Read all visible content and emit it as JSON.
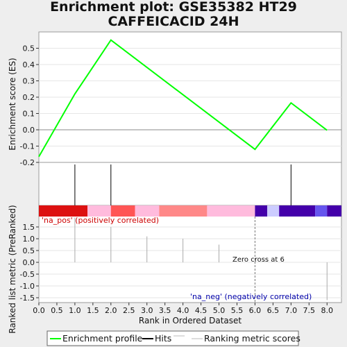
{
  "chart_data": {
    "type": "line",
    "title": "Enrichment plot: GSE35382 HT29 CAFFEICACID 24H",
    "es_panel": {
      "ylabel": "Enrichment score (ES)",
      "ylim": [
        -0.2,
        0.6
      ],
      "yticks": [
        "0.5",
        "0.4",
        "0.3",
        "0.2",
        "0.1",
        "0.0",
        "-0.1",
        "-0.2"
      ],
      "yticks_values": [
        0.5,
        0.4,
        0.3,
        0.2,
        0.1,
        0.0,
        -0.1,
        -0.2
      ],
      "series": [
        {
          "name": "Enrichment profile",
          "color": "#00ff00",
          "x": [
            0,
            1,
            2,
            6,
            7,
            8
          ],
          "y": [
            -0.165,
            0.22,
            0.55,
            -0.12,
            0.165,
            -0.003
          ]
        }
      ]
    },
    "hits": {
      "name": "Hits",
      "x": [
        1,
        2,
        7
      ]
    },
    "color_bar": [
      {
        "x0": 0,
        "x1": 1.35,
        "color": "#dd1111"
      },
      {
        "x0": 1.35,
        "x1": 2.0,
        "color": "#ffbbdd"
      },
      {
        "x0": 2.0,
        "x1": 2.67,
        "color": "#ff5555"
      },
      {
        "x0": 2.67,
        "x1": 3.34,
        "color": "#ffbbdd"
      },
      {
        "x0": 3.34,
        "x1": 4.67,
        "color": "#ff8888"
      },
      {
        "x0": 4.67,
        "x1": 6.0,
        "color": "#ffbbdd"
      },
      {
        "x0": 6.0,
        "x1": 6.34,
        "color": "#4400aa"
      },
      {
        "x0": 6.34,
        "x1": 6.67,
        "color": "#ccccff"
      },
      {
        "x0": 6.67,
        "x1": 7.67,
        "color": "#4400aa"
      },
      {
        "x0": 7.67,
        "x1": 8.0,
        "color": "#6655ee"
      },
      {
        "x0": 8.0,
        "x1": 8.4,
        "color": "#4400aa"
      }
    ],
    "metric_panel": {
      "ylabel": "Ranked list metric (PreRanked)",
      "ylim": [
        -1.6,
        1.6
      ],
      "yticks": [
        "1.5",
        "1.0",
        "0.5",
        "0.0",
        "-0.5",
        "-1.0",
        "-1.5"
      ],
      "yticks_values": [
        1.5,
        1.0,
        0.5,
        0.0,
        -0.5,
        -1.0,
        -1.5
      ],
      "series": [
        {
          "name": "Ranking metric scores",
          "color": "#aaaaaa",
          "x": [
            1,
            2,
            3,
            4,
            5,
            7,
            8
          ],
          "y": [
            1.9,
            1.5,
            1.1,
            1.0,
            0.75,
            0.0,
            -1.6
          ]
        }
      ],
      "pos_label": "'na_pos' (positively correlated)",
      "neg_label": "'na_neg' (negatively correlated)",
      "zero_cross_label": "Zero cross at 6",
      "zero_cross_x": 6
    },
    "xlabel": "Rank in Ordered Dataset",
    "xlim": [
      0,
      8.4
    ],
    "xticks": [
      "0.0",
      "0.5",
      "1.0",
      "1.5",
      "2.0",
      "2.5",
      "3.0",
      "3.5",
      "4.0",
      "4.5",
      "5.0",
      "5.5",
      "6.0",
      "6.5",
      "7.0",
      "7.5",
      "8.0"
    ],
    "xticks_values": [
      0,
      0.5,
      1,
      1.5,
      2,
      2.5,
      3,
      3.5,
      4,
      4.5,
      5,
      5.5,
      6,
      6.5,
      7,
      7.5,
      8
    ],
    "legend": {
      "placement": "bottom",
      "items": [
        {
          "label": "Enrichment profile",
          "color": "#00ff00"
        },
        {
          "label": "Hits",
          "color": "#000000"
        },
        {
          "label": "Ranking metric scores",
          "color": "#bbbbbb"
        }
      ]
    }
  }
}
